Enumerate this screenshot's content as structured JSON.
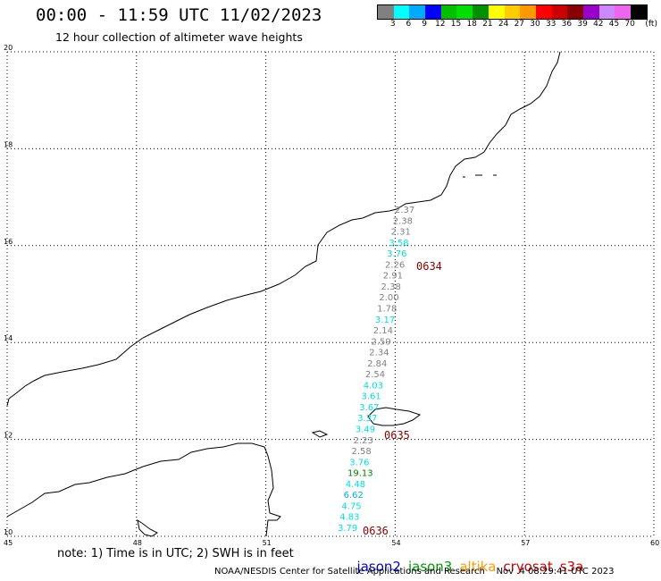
{
  "header": {
    "title": "00:00 - 11:59 UTC 11/02/2023",
    "subtitle": "12 hour collection of altimeter wave heights"
  },
  "colorbar": {
    "colors": [
      "#808080",
      "#00ffff",
      "#00aaff",
      "#0000ff",
      "#00c000",
      "#00e000",
      "#009000",
      "#ffff00",
      "#ffcc00",
      "#ff9900",
      "#ff0000",
      "#cc0000",
      "#880000",
      "#9900cc",
      "#cc88ff",
      "#ee66ee",
      "#000000"
    ],
    "labels": [
      "3",
      "6",
      "9",
      "12",
      "15",
      "18",
      "21",
      "24",
      "27",
      "30",
      "33",
      "36",
      "39",
      "42",
      "45",
      "70"
    ],
    "unit": "(ft)"
  },
  "map": {
    "lat_labels": [
      "20",
      "18",
      "16",
      "14",
      "12",
      "10"
    ],
    "lon_labels": [
      "45",
      "48",
      "51",
      "54",
      "57",
      "60"
    ],
    "grid": true
  },
  "observations": [
    {
      "value": "2.37",
      "color": "#808080"
    },
    {
      "value": "2.38",
      "color": "#808080"
    },
    {
      "value": "2.31",
      "color": "#808080"
    },
    {
      "value": "3.58",
      "color": "#00e0e0"
    },
    {
      "value": "3.76",
      "color": "#00e0e0"
    },
    {
      "value": "2.26",
      "color": "#808080"
    },
    {
      "value": "2.91",
      "color": "#808080"
    },
    {
      "value": "2.38",
      "color": "#808080"
    },
    {
      "value": "2.00",
      "color": "#808080"
    },
    {
      "value": "1.78",
      "color": "#808080"
    },
    {
      "value": "3.17",
      "color": "#00e0e0"
    },
    {
      "value": "2.14",
      "color": "#808080"
    },
    {
      "value": "2.59",
      "color": "#808080"
    },
    {
      "value": "2.34",
      "color": "#808080"
    },
    {
      "value": "2.84",
      "color": "#808080"
    },
    {
      "value": "2.54",
      "color": "#808080"
    },
    {
      "value": "4.03",
      "color": "#00e0e0"
    },
    {
      "value": "3.61",
      "color": "#00e0e0"
    },
    {
      "value": "3.67",
      "color": "#00e0e0"
    },
    {
      "value": "3.37",
      "color": "#00e0e0"
    },
    {
      "value": "3.49",
      "color": "#00e0e0"
    },
    {
      "value": "2.23",
      "color": "#808080"
    },
    {
      "value": "2.58",
      "color": "#808080"
    },
    {
      "value": "3.76",
      "color": "#00e0e0"
    },
    {
      "value": "19.13",
      "color": "#008000"
    },
    {
      "value": "4.48",
      "color": "#00e0e0"
    },
    {
      "value": "6.62",
      "color": "#00aaff"
    },
    {
      "value": "4.75",
      "color": "#00e0e0"
    },
    {
      "value": "4.83",
      "color": "#00e0e0"
    },
    {
      "value": "3.79",
      "color": "#00e0e0"
    }
  ],
  "pass_times": [
    "0634",
    "0635",
    "0636"
  ],
  "note": "note: 1) Time is in UTC; 2) SWH is in feet",
  "legend": [
    {
      "name": "jason2",
      "color": "#0000cc"
    },
    {
      "name": "jason3",
      "color": "#009900"
    },
    {
      "name": "altika",
      "color": "#ff9900"
    },
    {
      "name": "cryosat",
      "color": "#cc0000"
    },
    {
      "name": "s3a",
      "color": "#cc0000"
    }
  ],
  "footer": "NOAA/NESDIS Center for Satellite Applications and Research    Nov  4 08:29:41 UTC 2023"
}
